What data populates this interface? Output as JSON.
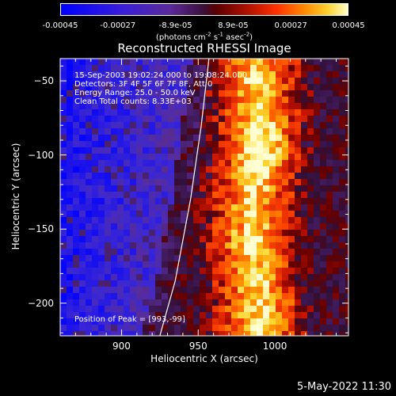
{
  "chart_data": {
    "type": "heatmap",
    "title": "Reconstructed RHESSI Image",
    "xlabel": "Heliocentric X (arcsec)",
    "ylabel": "Heliocentric Y (arcsec)",
    "xlim": [
      860,
      1048
    ],
    "ylim": [
      -222,
      -35
    ],
    "x_ticks": [
      900,
      950,
      1000
    ],
    "y_ticks": [
      -50,
      -100,
      -150,
      -200
    ],
    "colorbar": {
      "ticks": [
        "-0.00045",
        "-0.00027",
        "-8.9e-05",
        "8.9e-05",
        "0.00027",
        "0.00045"
      ],
      "units": "(photons cm^-2 s^-1 asec^-2)",
      "range": [
        -0.00045,
        0.00045
      ]
    },
    "annotations": {
      "time_range": "15-Sep-2003 19:02:24.000 to 19:08:24.000",
      "detectors": "Detectors: 3F 4F 5F 6F 7F 8F, Att 0",
      "energy_range": "Energy Range: 25.0 - 50.0 keV",
      "clean_counts": "Clean     Total counts: 8.33E+03",
      "peak_position": "Position of Peak = [993,-99]"
    },
    "peak": {
      "x": 993,
      "y": -99
    },
    "limb_curve": [
      [
        925,
        -222
      ],
      [
        935,
        -185
      ],
      [
        945,
        -130
      ],
      [
        952,
        -80
      ],
      [
        957,
        -35
      ]
    ],
    "emission_ridge": [
      [
        990,
        -60
      ],
      [
        990,
        -90
      ],
      [
        985,
        -130
      ],
      [
        985,
        -170
      ],
      [
        990,
        -205
      ]
    ]
  },
  "footer": {
    "date": "5-May-2022 11:30"
  }
}
